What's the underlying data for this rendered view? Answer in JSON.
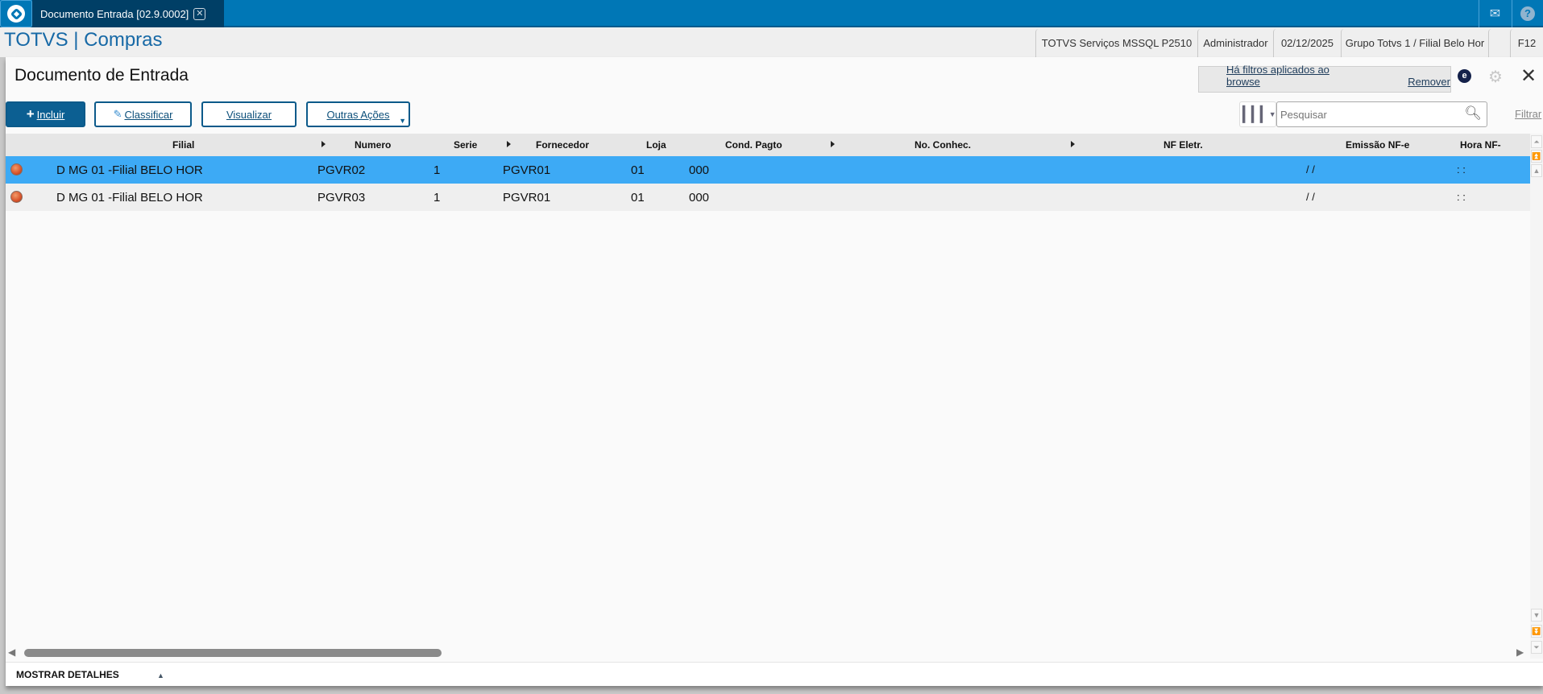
{
  "topbar": {
    "tab_title": "Documento Entrada [02.9.0002]",
    "tab_close": "✕",
    "icons": [
      "totvs-logo-icon",
      "mail-icon",
      "help-icon"
    ]
  },
  "header": {
    "brand": "TOTVS | Compras",
    "environment": "TOTVS Serviços MSSQL P2510",
    "user": "Administrador",
    "date": "02/12/2025",
    "branch": "Grupo Totvs 1 / Filial Belo Hor",
    "shortcut": "F12"
  },
  "page": {
    "title": "Documento de Entrada",
    "filter_notice": "Há filtros aplicados ao browse",
    "remove_filter": "Remover",
    "e_badge": "e"
  },
  "toolbar": {
    "incluir": "Incluir",
    "classificar": "Classificar",
    "visualizar": "Visualizar",
    "outras_acoes": "Outras Ações",
    "search_placeholder": "Pesquisar",
    "filtrar": "Filtrar"
  },
  "grid": {
    "columns": [
      "Filial",
      "Numero",
      "Serie",
      "Fornecedor",
      "Loja",
      "Cond. Pagto",
      "No. Conhec.",
      "NF Eletr.",
      "Emissão NF-e",
      "Hora NF-"
    ],
    "rows": [
      {
        "status_color": "#e0602f",
        "filial": "D MG 01 -Filial BELO HOR",
        "numero": "PGVR02",
        "serie": "1",
        "fornecedor": "PGVR01",
        "loja": "01",
        "cond_pagto": "000",
        "emissao": "/ /",
        "hora": ": :",
        "selected": true
      },
      {
        "status_color": "#e0602f",
        "filial": "D MG 01 -Filial BELO HOR",
        "numero": "PGVR03",
        "serie": "1",
        "fornecedor": "PGVR01",
        "loja": "01",
        "cond_pagto": "000",
        "emissao": "/ /",
        "hora": ": :",
        "selected": false
      }
    ]
  },
  "footer": {
    "details": "MOSTRAR DETALHES"
  },
  "colors": {
    "topbar": "#0077b6",
    "tab_active": "#003f66",
    "selected_row": "#3daaf5",
    "primary_button": "#0c5f92"
  }
}
